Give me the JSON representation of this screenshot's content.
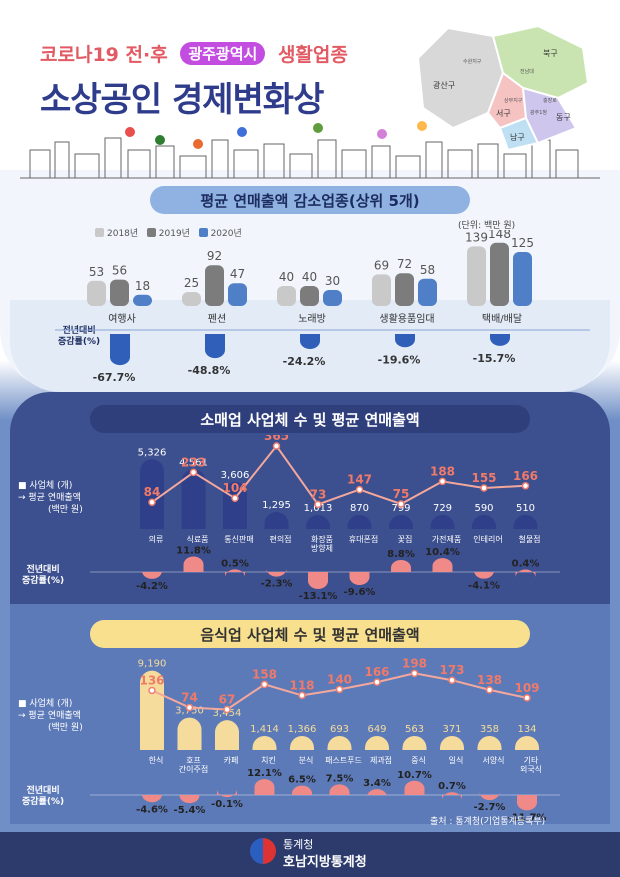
{
  "header": {
    "title_line1_prefix": "코로나19 전·후",
    "title_line1_pill": "광주광역시",
    "title_line1_suffix": "생활업종",
    "title_line2": "소상공인 경제변화상"
  },
  "map": {
    "districts": [
      "광산구",
      "북구",
      "서구",
      "남구",
      "동구"
    ],
    "small_labels": [
      "수완지구",
      "전남대",
      "상무지구",
      "충장로",
      "광주1청"
    ],
    "colors": {
      "광산구": "#d8d8d8",
      "북구": "#c9e4b0",
      "서구": "#f6c3c3",
      "남구": "#bfe0f2",
      "동구": "#cfc6ee"
    }
  },
  "section1": {
    "title": "평균 연매출액 감소업종(상위 5개)",
    "unit": "(단위: 백만 원)",
    "legend": [
      "2018년",
      "2019년",
      "2020년"
    ],
    "change_label_lines": [
      "전년대비",
      "증감률(%)"
    ],
    "colors": {
      "2018": "#c9c9c9",
      "2019": "#7c7c7c",
      "2020": "#4f7fc6",
      "neg": "#2f5fb8"
    }
  },
  "chart_data": [
    {
      "type": "bar",
      "title": "평균 연매출액 감소업종(상위 5개)",
      "unit": "백만 원",
      "categories": [
        "여행사",
        "펜션",
        "노래방",
        "생활용품임대",
        "택배/배달"
      ],
      "series": [
        {
          "name": "2018년",
          "values": [
            53,
            25,
            40,
            69,
            139
          ]
        },
        {
          "name": "2019년",
          "values": [
            56,
            92,
            40,
            72,
            148
          ]
        },
        {
          "name": "2020년",
          "values": [
            18,
            47,
            30,
            58,
            125
          ]
        }
      ],
      "change_pct": [
        -67.7,
        -48.8,
        -24.2,
        -19.6,
        -15.7
      ]
    },
    {
      "type": "bar",
      "title": "소매업 사업체 수 및 평균 연매출액",
      "categories": [
        "의류",
        "식료품",
        "통신판매",
        "편의점",
        "화장품 방향제",
        "휴대폰점",
        "꽃집",
        "가전제품",
        "인테리어",
        "철물점"
      ],
      "series": [
        {
          "name": "사업체 (개)",
          "values": [
            5326,
            4561,
            3606,
            1295,
            1013,
            870,
            799,
            729,
            590,
            510
          ]
        },
        {
          "name": "평균 연매출액 (백만 원)",
          "values": [
            84,
            233,
            104,
            365,
            73,
            147,
            75,
            188,
            155,
            166
          ]
        }
      ],
      "change_pct": [
        -4.2,
        11.8,
        0.5,
        -2.3,
        -13.1,
        -9.6,
        8.8,
        10.4,
        -4.1,
        0.4
      ]
    },
    {
      "type": "bar",
      "title": "음식업 사업체 수 및 평균 연매출액",
      "categories": [
        "한식",
        "호프 간이주점",
        "카페",
        "치킨",
        "분식",
        "패스트푸드",
        "제과점",
        "중식",
        "일식",
        "서양식",
        "기타 외국식"
      ],
      "series": [
        {
          "name": "사업체 (개)",
          "values": [
            9190,
            3750,
            3454,
            1414,
            1366,
            693,
            649,
            563,
            371,
            358,
            134
          ]
        },
        {
          "name": "평균 연매출액 (백만 원)",
          "values": [
            136,
            74,
            67,
            158,
            118,
            140,
            166,
            198,
            173,
            138,
            109
          ]
        }
      ],
      "change_pct": [
        -4.6,
        -5.4,
        -0.1,
        12.1,
        6.5,
        7.5,
        3.4,
        10.7,
        0.7,
        -2.7,
        -11.7
      ]
    }
  ],
  "section2": {
    "title": "소매업 사업체 수 및 평균 연매출액",
    "legend_count": "사업체",
    "legend_count_unit": "(개)",
    "legend_sales": "평균 연매출액",
    "legend_sales_unit": "(백만 원)",
    "change_label_lines": [
      "전년대비",
      "증감률(%)"
    ],
    "count_labels": [
      "5,326",
      "4,561",
      "3,606",
      "1,295",
      "1,013",
      "870",
      "799",
      "729",
      "590",
      "510"
    ],
    "change_labels": [
      "-4.2%",
      "11.8%",
      "0.5%",
      "-2.3%",
      "-13.1%",
      "-9.6%",
      "8.8%",
      "10.4%",
      "-4.1%",
      "0.4%"
    ],
    "category_labels": [
      "의류",
      "식료품",
      "통신판매",
      "편의점",
      "화장품\n방향제",
      "휴대폰점",
      "꽃집",
      "가전제품",
      "인테리어",
      "철물점"
    ]
  },
  "section3": {
    "title": "음식업 사업체 수 및 평균 연매출액",
    "legend_count": "사업체",
    "legend_count_unit": "(개)",
    "legend_sales": "평균 연매출액",
    "legend_sales_unit": "(백만 원)",
    "change_label_lines": [
      "전년대비",
      "증감률(%)"
    ],
    "count_labels": [
      "9,190",
      "3,750",
      "3,454",
      "1,414",
      "1,366",
      "693",
      "649",
      "563",
      "371",
      "358",
      "134"
    ],
    "change_labels": [
      "-4.6%",
      "-5.4%",
      "-0.1%",
      "12.1%",
      "6.5%",
      "7.5%",
      "3.4%",
      "10.7%",
      "0.7%",
      "-2.7%",
      "-11.7%"
    ],
    "category_labels": [
      "한식",
      "호프\n간이주점",
      "카페",
      "치킨",
      "분식",
      "패스트푸드",
      "제과점",
      "중식",
      "일식",
      "서양식",
      "기타\n외국식"
    ]
  },
  "footer": {
    "source": "출처 : 통계청(기업통계등록부)",
    "org1": "통계청",
    "org2": "호남지방통계청"
  }
}
